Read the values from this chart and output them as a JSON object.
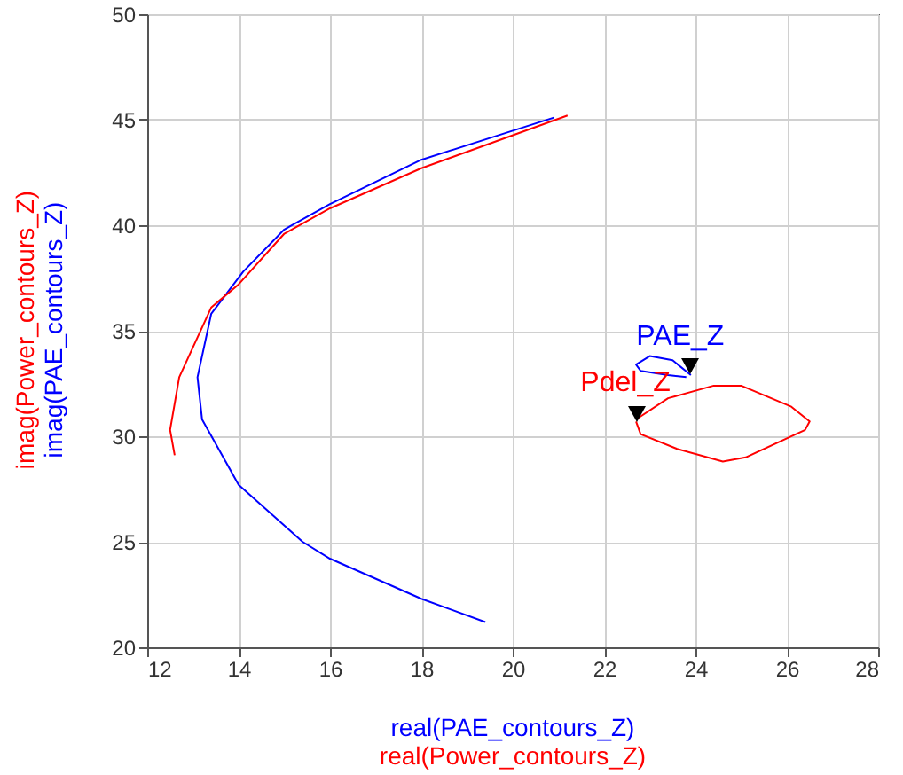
{
  "chart_data": {
    "type": "line",
    "xlabel": "real(PAE_contours_Z)\nreal(Power_contours_Z)",
    "ylabel": "imag(Power_contours_Z)\nimag(PAE_contours_Z)",
    "xlim": [
      12,
      28
    ],
    "ylim": [
      20,
      50
    ],
    "xticks": [
      12,
      14,
      16,
      18,
      20,
      22,
      24,
      26,
      28
    ],
    "yticks": [
      20,
      25,
      30,
      35,
      40,
      45,
      50
    ],
    "grid": true,
    "series": [
      {
        "color": "#0000ff",
        "x": [
          20.9,
          18.0,
          16.0,
          15.0,
          14.1,
          13.4,
          13.1,
          13.2,
          14.0,
          15.4,
          16.0,
          18.0,
          19.4
        ],
        "values": [
          45.1,
          43.1,
          41.0,
          39.8,
          37.8,
          35.8,
          32.8,
          30.8,
          27.7,
          25.0,
          24.2,
          22.3,
          21.2
        ]
      },
      {
        "color": "#ff0000",
        "x": [
          21.2,
          18.0,
          16.0,
          15.0,
          14.0,
          13.4,
          12.7,
          12.5,
          12.6
        ],
        "values": [
          45.2,
          42.7,
          40.8,
          39.6,
          37.2,
          36.1,
          32.8,
          30.3,
          29.1
        ]
      },
      {
        "name": "PAE_Z",
        "color": "#0000ff",
        "x": [
          23.9,
          23.5,
          23.0,
          22.7,
          22.8,
          23.4,
          23.8
        ],
        "values": [
          32.9,
          33.6,
          33.8,
          33.4,
          33.1,
          32.9,
          32.8
        ]
      },
      {
        "name": "Pdel_Z",
        "color": "#ff0000",
        "x": [
          22.7,
          22.8,
          23.6,
          24.6,
          25.1,
          26.4,
          26.5,
          26.1,
          25.0,
          24.4,
          23.4,
          22.7
        ],
        "values": [
          30.7,
          30.1,
          29.4,
          28.8,
          29.0,
          30.3,
          30.7,
          31.4,
          32.4,
          32.4,
          31.8,
          30.8
        ]
      }
    ]
  }
}
